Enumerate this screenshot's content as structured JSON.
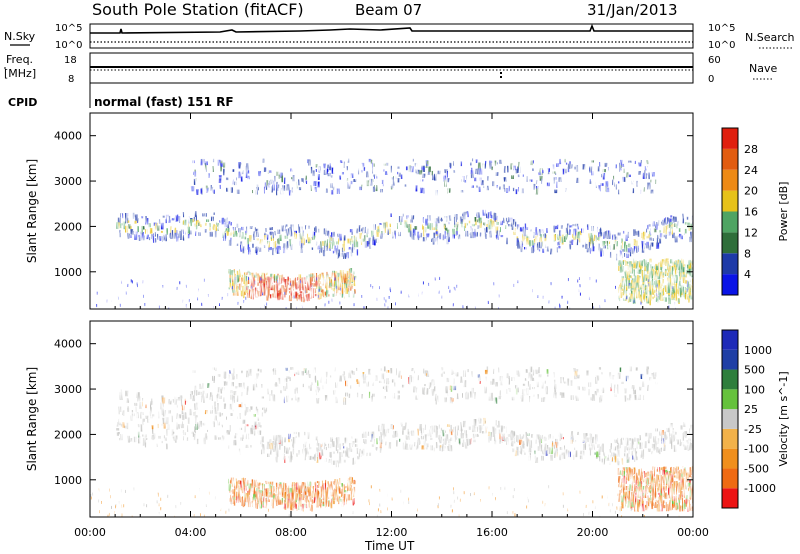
{
  "header": {
    "station": "South Pole Station (fitACF)",
    "beam": "Beam 07",
    "date": "31/Jan/2013"
  },
  "panels": {
    "nsky_label": "N.Sky",
    "nsearch_label": "N.Search",
    "freq_label_1": "Freq.",
    "freq_label_2": "[MHz]",
    "nave_label": "Nave",
    "cpid_label": "CPID",
    "cpid_value": "normal (fast) 151 RF",
    "nsky_ticks": [
      "10^5",
      "10^0"
    ],
    "nsearch_ticks": [
      "10^5",
      "10^0"
    ],
    "freq_ticks": [
      "18",
      "8"
    ],
    "nave_ticks": [
      "60",
      "0"
    ]
  },
  "colors": {
    "power": [
      "#0a14e6",
      "#1e3aa8",
      "#2f6e3a",
      "#4fa463",
      "#e7c21a",
      "#ee8a15",
      "#e25c10",
      "#e01f0e"
    ],
    "velocity": [
      "#ed1414",
      "#ef6a12",
      "#f08f1c",
      "#f2b24a",
      "#c8c8c8",
      "#66c23c",
      "#2e7e3c",
      "#1f3fa5",
      "#1e2ab8"
    ],
    "ground_scatter": "#c4c4c2"
  },
  "chart_data": [
    {
      "type": "heatmap",
      "title": "Power",
      "xlabel": "",
      "ylabel": "Slant Range [km]",
      "x_ticks": [
        "00:00",
        "04:00",
        "08:00",
        "12:00",
        "16:00",
        "20:00",
        "00:00"
      ],
      "y_ticks": [
        "1000",
        "2000",
        "3000",
        "4000"
      ],
      "ylim": [
        180,
        4500
      ],
      "colorbar": {
        "label": "Power [dB]",
        "ticks": [
          "4",
          "8",
          "12",
          "16",
          "20",
          "24",
          "28"
        ],
        "range": [
          0,
          32
        ]
      },
      "regions": [
        {
          "name": "far band",
          "t_start": 1.0,
          "t_end": 24.0,
          "range_km": [
            1600,
            2350
          ],
          "power_db": 6
        },
        {
          "name": "upper patches",
          "t_start": 4.0,
          "t_end": 22.5,
          "range_km": [
            2800,
            3500
          ],
          "power_db": 5
        },
        {
          "name": "near echoes",
          "t_start": 5.5,
          "t_end": 10.5,
          "range_km": [
            500,
            1200
          ],
          "power_db": 27
        },
        {
          "name": "late near echoes",
          "t_start": 21.0,
          "t_end": 24.0,
          "range_km": [
            400,
            1300
          ],
          "power_db": 16
        }
      ]
    },
    {
      "type": "heatmap",
      "title": "Velocity",
      "xlabel": "Time UT",
      "ylabel": "Slant Range [km]",
      "x_ticks": [
        "00:00",
        "04:00",
        "08:00",
        "12:00",
        "16:00",
        "20:00",
        "00:00"
      ],
      "y_ticks": [
        "1000",
        "2000",
        "3000",
        "4000"
      ],
      "ylim": [
        180,
        4500
      ],
      "colorbar": {
        "label": "Velocity [m s^-1]",
        "ticks": [
          "1000",
          "500",
          "100",
          "25",
          "-25",
          "-100",
          "-500",
          "-1000"
        ]
      },
      "regions": [
        {
          "name": "ground scatter band",
          "t_start": 1.0,
          "t_end": 24.0,
          "range_km": [
            1500,
            2700
          ],
          "velocity": 0
        },
        {
          "name": "upper patches",
          "t_start": 4.0,
          "t_end": 22.5,
          "range_km": [
            2800,
            3500
          ],
          "velocity": 0
        },
        {
          "name": "near echoes",
          "t_start": 5.5,
          "t_end": 10.5,
          "range_km": [
            500,
            1200
          ],
          "velocity": -200
        },
        {
          "name": "late near echoes",
          "t_start": 21.0,
          "t_end": 24.0,
          "range_km": [
            400,
            1300
          ],
          "velocity": -150
        }
      ]
    }
  ]
}
